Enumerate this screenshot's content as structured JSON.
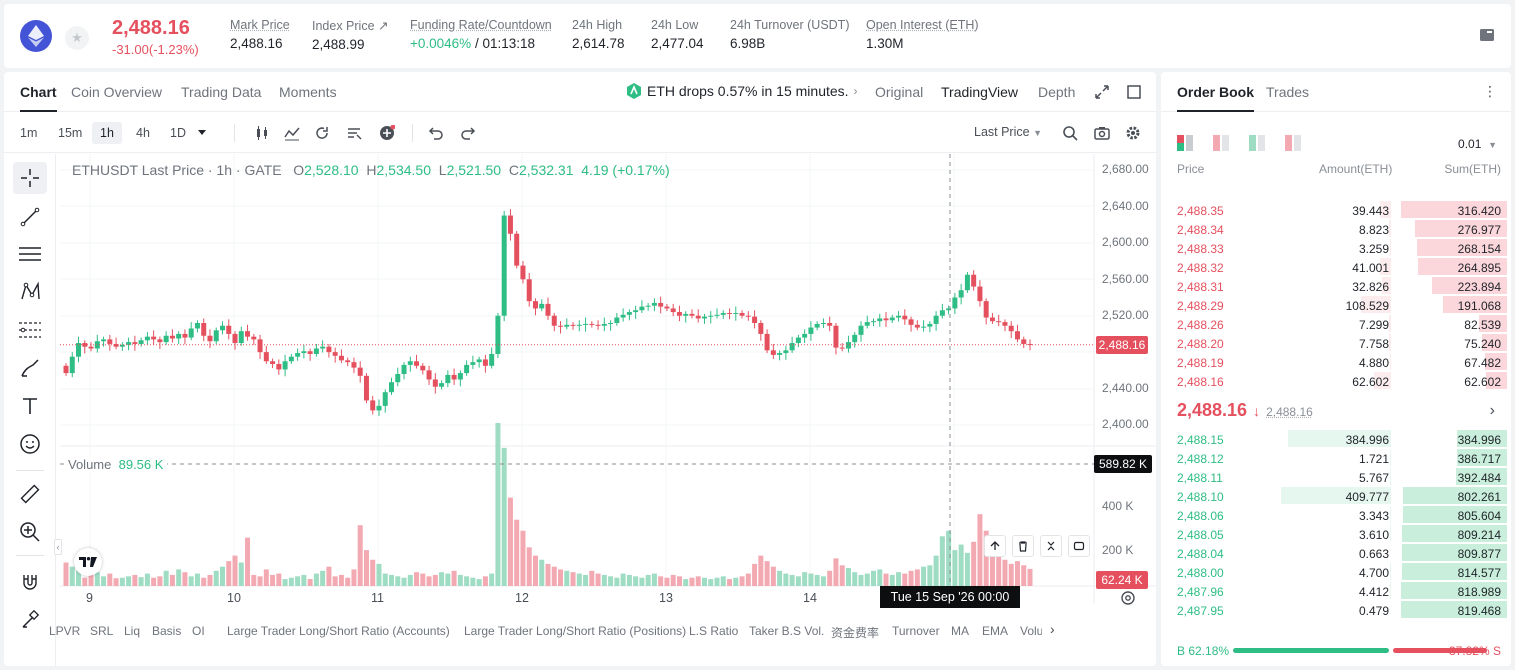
{
  "ticker": {
    "last_price": "2,488.16",
    "change": "-31.00(-1.23%)",
    "stats": [
      {
        "label": "Mark Price",
        "value": "2,488.16"
      },
      {
        "label": "Index Price ↗",
        "value": "2,488.99"
      },
      {
        "label": "Funding Rate/Countdown",
        "value_green": "+0.0046%",
        "value_rest": " / 01:13:18"
      },
      {
        "label": "24h High",
        "value": "2,614.78"
      },
      {
        "label": "24h Low",
        "value": "2,477.04"
      },
      {
        "label": "24h Turnover (USDT)",
        "value": "6.98B"
      },
      {
        "label": "Open Interest (ETH)",
        "value": "1.30M"
      }
    ]
  },
  "chart_tabs": [
    "Chart",
    "Coin Overview",
    "Trading Data",
    "Moments"
  ],
  "news": "ETH drops 0.57% in 15 minutes.",
  "view_modes": [
    "Original",
    "TradingView",
    "Depth"
  ],
  "timeframes": [
    "1m",
    "15m",
    "1h",
    "4h",
    "1D"
  ],
  "price_type": "Last Price",
  "legend": {
    "symbol": "ETHUSDT Last Price · 1h · GATE",
    "o_key": "O",
    "o": "2,528.10",
    "h_key": "H",
    "h": "2,534.50",
    "l_key": "L",
    "l": "2,521.50",
    "c_key": "C",
    "c": "2,532.31",
    "chg": "4.19 (+0.17%)"
  },
  "volume_legend": {
    "label": "Volume",
    "value": "89.56 K"
  },
  "y_axis": [
    "2,680.00",
    "2,640.00",
    "2,600.00",
    "2,560.00",
    "2,520.00",
    "2,480.00",
    "2,440.00",
    "2,400.00"
  ],
  "y_axis_volume": [
    "400 K",
    "200 K"
  ],
  "price_tag": "2,488.16",
  "volume_cursor_tag": "589.82 K",
  "volume_tag": "62.24 K",
  "x_axis": [
    "9",
    "10",
    "11",
    "12",
    "13",
    "14"
  ],
  "crosshair_time": "Tue 15 Sep '26   00:00",
  "indicators": [
    "LPVR",
    "SRL",
    "Liq",
    "Basis",
    "OI",
    "Large Trader Long/Short Ratio (Accounts)",
    "Large Trader Long/Short Ratio (Positions)",
    "L.S Ratio",
    "Taker B.S Vol.",
    "资金费率",
    "Turnover",
    "MA",
    "EMA",
    "Volu"
  ],
  "order_book": {
    "tabs": [
      "Order Book",
      "Trades"
    ],
    "precision": "0.01",
    "headers": [
      "Price",
      "Amount(ETH)",
      "Sum(ETH)"
    ],
    "asks": [
      {
        "price": "2,488.35",
        "amount": "39.443",
        "sum": "316.420",
        "a_frac": 0.1,
        "s_frac": 1.0
      },
      {
        "price": "2,488.34",
        "amount": "8.823",
        "sum": "276.977",
        "a_frac": 0.02,
        "s_frac": 0.87
      },
      {
        "price": "2,488.33",
        "amount": "3.259",
        "sum": "268.154",
        "a_frac": 0.01,
        "s_frac": 0.85
      },
      {
        "price": "2,488.32",
        "amount": "41.001",
        "sum": "264.895",
        "a_frac": 0.1,
        "s_frac": 0.84
      },
      {
        "price": "2,488.31",
        "amount": "32.826",
        "sum": "223.894",
        "a_frac": 0.08,
        "s_frac": 0.71
      },
      {
        "price": "2,488.29",
        "amount": "108.529",
        "sum": "191.068",
        "a_frac": 0.27,
        "s_frac": 0.6
      },
      {
        "price": "2,488.26",
        "amount": "7.299",
        "sum": "82.539",
        "a_frac": 0.02,
        "s_frac": 0.26
      },
      {
        "price": "2,488.20",
        "amount": "7.758",
        "sum": "75.240",
        "a_frac": 0.02,
        "s_frac": 0.24
      },
      {
        "price": "2,488.19",
        "amount": "4.880",
        "sum": "67.482",
        "a_frac": 0.01,
        "s_frac": 0.21
      },
      {
        "price": "2,488.16",
        "amount": "62.602",
        "sum": "62.602",
        "a_frac": 0.15,
        "s_frac": 0.2
      }
    ],
    "mid_price": "2,488.16",
    "mid_mark": "2,488.16",
    "bids": [
      {
        "price": "2,488.15",
        "amount": "384.996",
        "sum": "384.996",
        "a_frac": 0.94,
        "s_frac": 0.47
      },
      {
        "price": "2,488.12",
        "amount": "1.721",
        "sum": "386.717",
        "a_frac": 0.01,
        "s_frac": 0.47
      },
      {
        "price": "2,488.11",
        "amount": "5.767",
        "sum": "392.484",
        "a_frac": 0.01,
        "s_frac": 0.48
      },
      {
        "price": "2,488.10",
        "amount": "409.777",
        "sum": "802.261",
        "a_frac": 1.0,
        "s_frac": 0.98
      },
      {
        "price": "2,488.06",
        "amount": "3.343",
        "sum": "805.604",
        "a_frac": 0.01,
        "s_frac": 0.98
      },
      {
        "price": "2,488.05",
        "amount": "3.610",
        "sum": "809.214",
        "a_frac": 0.01,
        "s_frac": 0.99
      },
      {
        "price": "2,488.04",
        "amount": "0.663",
        "sum": "809.877",
        "a_frac": 0.0,
        "s_frac": 0.99
      },
      {
        "price": "2,488.00",
        "amount": "4.700",
        "sum": "814.577",
        "a_frac": 0.01,
        "s_frac": 0.99
      },
      {
        "price": "2,487.96",
        "amount": "4.412",
        "sum": "818.989",
        "a_frac": 0.01,
        "s_frac": 1.0
      },
      {
        "price": "2,487.95",
        "amount": "0.479",
        "sum": "819.468",
        "a_frac": 0.0,
        "s_frac": 1.0
      }
    ],
    "buy_ratio": "B 62.18%",
    "sell_ratio": "37.82% S",
    "buy_frac": 0.6218
  },
  "colors": {
    "up": "#2ebd85",
    "down": "#e5505e",
    "vol_up": "#9fdcc4",
    "vol_down": "#f3a9b2"
  }
}
